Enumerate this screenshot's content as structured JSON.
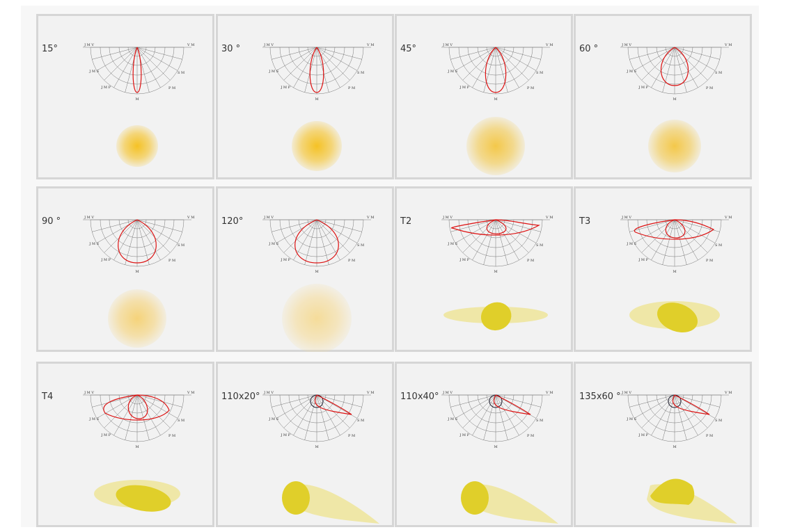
{
  "polar_labels": [
    "J M V",
    "V M",
    "J M S",
    "S M",
    "J M P",
    "P M",
    "M"
  ],
  "cards": [
    {
      "label": "15°"
    },
    {
      "label": "30 °"
    },
    {
      "label": "45°"
    },
    {
      "label": "60 °"
    },
    {
      "label": "90 °"
    },
    {
      "label": "120°"
    },
    {
      "label": "T2"
    },
    {
      "label": "T3"
    },
    {
      "label": "T4"
    },
    {
      "label": "110x20°"
    },
    {
      "label": "110x40°"
    },
    {
      "label": "135x60 °"
    }
  ]
}
